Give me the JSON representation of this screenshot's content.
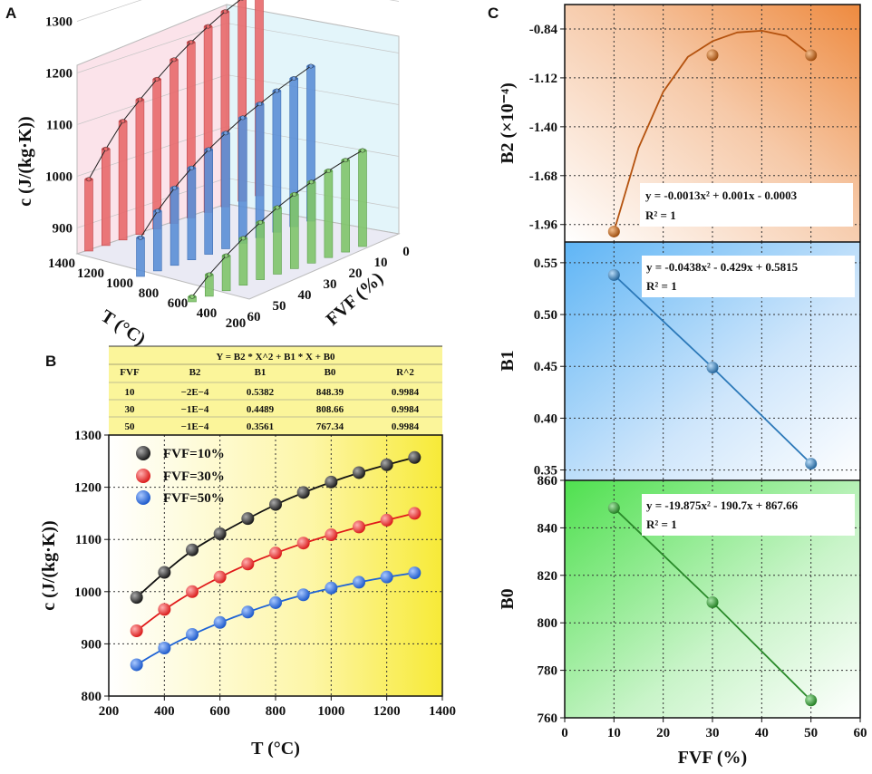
{
  "panels": {
    "a": "A",
    "b": "B",
    "c": "C"
  },
  "colors": {
    "red": "#e8696b",
    "blue": "#5b8fd6",
    "green": "#7fc46a",
    "black_series": "#111111",
    "red_series": "#e01a1a",
    "blue_series": "#1e63d6",
    "b2_line": "#b4520e",
    "b1_line": "#2b78b8",
    "b0_line": "#2a8a2a"
  },
  "chart_data": [
    {
      "id": "A",
      "type": "bar",
      "variant": "3d-bar",
      "title": "",
      "zlabel": "c (J/(kg·K))",
      "xlabel": "T (°C)",
      "ylabel": "FVF (%)",
      "z_ticks": [
        "900",
        "1000",
        "1100",
        "1200",
        "1300"
      ],
      "t_ticks": [
        "1400",
        "1200",
        "1000",
        "800",
        "600",
        "400",
        "200"
      ],
      "fvf_ticks": [
        "0",
        "10",
        "20",
        "30",
        "40",
        "50",
        "60"
      ],
      "categories": [
        "300",
        "400",
        "500",
        "600",
        "700",
        "800",
        "900",
        "1000",
        "1100",
        "1200",
        "1300"
      ],
      "series": [
        {
          "name": "FVF=10%",
          "values": [
            989,
            1037,
            1080,
            1111,
            1140,
            1167,
            1190,
            1210,
            1228,
            1243,
            1257
          ]
        },
        {
          "name": "FVF=30%",
          "values": [
            925,
            966,
            1000,
            1028,
            1053,
            1074,
            1093,
            1109,
            1124,
            1137,
            1150
          ]
        },
        {
          "name": "FVF=50%",
          "values": [
            860,
            892,
            918,
            941,
            961,
            979,
            994,
            1007,
            1018,
            1028,
            1036
          ]
        }
      ]
    },
    {
      "id": "B",
      "type": "scatter",
      "xlabel": "T (°C)",
      "ylabel": "c (J/(kg·K))",
      "xlim": [
        200,
        1400
      ],
      "ylim": [
        800,
        1300
      ],
      "xticks": [
        "200",
        "400",
        "600",
        "800",
        "1000",
        "1200",
        "1400"
      ],
      "yticks": [
        "800",
        "900",
        "1000",
        "1100",
        "1200",
        "1300"
      ],
      "x": [
        300,
        400,
        500,
        600,
        700,
        800,
        900,
        1000,
        1100,
        1200,
        1300
      ],
      "series": [
        {
          "name": "FVF=10%",
          "values": [
            989,
            1037,
            1080,
            1111,
            1140,
            1167,
            1190,
            1210,
            1228,
            1243,
            1257
          ]
        },
        {
          "name": "FVF=30%",
          "values": [
            925,
            966,
            1000,
            1028,
            1053,
            1074,
            1093,
            1109,
            1124,
            1137,
            1150
          ]
        },
        {
          "name": "FVF=50%",
          "values": [
            860,
            892,
            918,
            941,
            961,
            979,
            994,
            1007,
            1018,
            1028,
            1036
          ]
        }
      ],
      "table": {
        "title": "Y = B2 * X^2 + B1 * X + B0",
        "headers": [
          "FVF",
          "B2",
          "B1",
          "B0",
          "R^2"
        ],
        "rows": [
          [
            "10",
            "−2E−4",
            "0.5382",
            "848.39",
            "0.9984"
          ],
          [
            "30",
            "−1E−4",
            "0.4489",
            "808.66",
            "0.9984"
          ],
          [
            "50",
            "−1E−4",
            "0.3561",
            "767.34",
            "0.9984"
          ]
        ]
      }
    },
    {
      "id": "C-B2",
      "type": "scatter",
      "ylabel": "B2 (×10⁻⁴)",
      "xlim": [
        0,
        60
      ],
      "ylim": [
        -2.06,
        -0.7
      ],
      "yticks": [
        "-0.84",
        "-1.12",
        "-1.40",
        "-1.68",
        "-1.96"
      ],
      "x": [
        10,
        30,
        50
      ],
      "values": [
        -2.0,
        -0.99,
        -0.99
      ],
      "fit_x": [
        10,
        15,
        20,
        25,
        30,
        35,
        40,
        45,
        50
      ],
      "fit_y": [
        -2.0,
        -1.52,
        -1.2,
        -1.0,
        -0.91,
        -0.86,
        -0.85,
        -0.88,
        -0.99
      ],
      "equation": "y = -0.0013x² + 0.001x - 0.0003",
      "r2": "R² = 1"
    },
    {
      "id": "C-B1",
      "type": "scatter",
      "ylabel": "B1",
      "xlim": [
        0,
        60
      ],
      "ylim": [
        0.34,
        0.57
      ],
      "yticks": [
        "0.55",
        "0.50",
        "0.45",
        "0.40",
        "0.35"
      ],
      "x": [
        10,
        30,
        50
      ],
      "values": [
        0.5382,
        0.4489,
        0.3561
      ],
      "equation": "y = -0.0438x² - 0.429x + 0.5815",
      "r2": "R² = 1"
    },
    {
      "id": "C-B0",
      "type": "scatter",
      "ylabel": "B0",
      "xlabel": "FVF (%)",
      "xlim": [
        0,
        60
      ],
      "ylim": [
        760,
        860
      ],
      "xticks": [
        "0",
        "10",
        "20",
        "30",
        "40",
        "50",
        "60"
      ],
      "yticks": [
        "860",
        "840",
        "820",
        "800",
        "780",
        "760"
      ],
      "x": [
        10,
        30,
        50
      ],
      "values": [
        848.39,
        808.66,
        767.34
      ],
      "equation": "y = -19.875x² - 190.7x + 867.66",
      "r2": "R² = 1"
    }
  ]
}
